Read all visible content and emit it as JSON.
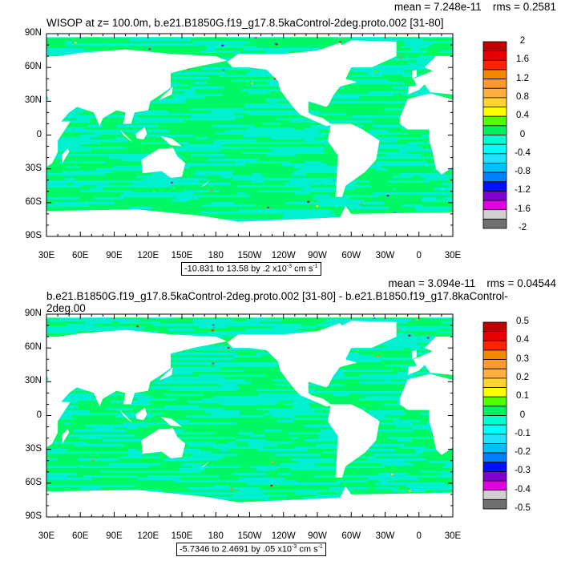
{
  "panels": [
    {
      "title": "WISOP at z= 100.0m, b.e21.B1850G.f19_g17.8.5kaControl-2deg.proto.002 [31-80]",
      "mean": "mean = 7.248e-11",
      "rms": "rms = 0.2581",
      "info": {
        "range": "-10.831 to 13.58 by .2 x10",
        "exp": "-3",
        "unit": " cm s",
        "unit_exp": "-1"
      },
      "colorbar_labels": [
        "2",
        "1.6",
        "1.2",
        "0.8",
        "0.4",
        "0",
        "-0.4",
        "-0.8",
        "-1.2",
        "-1.6",
        "-2"
      ]
    },
    {
      "title": "b.e21.B1850G.f19_g17.8.5kaControl-2deg.proto.002 [31-80] - b.e21.B1850.f19_g17.8kaControl-2deg.00",
      "mean": "mean = 3.094e-11",
      "rms": "rms = 0.04544",
      "info": {
        "range": "-5.7346 to 2.4691 by .05 x10",
        "exp": "-3",
        "unit": " cm s",
        "unit_exp": "-1"
      },
      "colorbar_labels": [
        "0.5",
        "0.4",
        "0.3",
        "0.2",
        "0.1",
        "0",
        "-0.1",
        "-0.2",
        "-0.3",
        "-0.4",
        "-0.5"
      ]
    }
  ],
  "lon_labels": [
    "30E",
    "60E",
    "90E",
    "120E",
    "150E",
    "180",
    "150W",
    "120W",
    "90W",
    "60W",
    "30W",
    "0",
    "30E"
  ],
  "lat_labels": [
    "90N",
    "60N",
    "30N",
    "0",
    "30S",
    "60S",
    "90S"
  ],
  "colors": {
    "colorbar": [
      "#c00000",
      "#e80000",
      "#ff2400",
      "#f08800",
      "#ff9a30",
      "#ffb040",
      "#ffd430",
      "#ffff00",
      "#50ff00",
      "#00f060",
      "#00ffd0",
      "#00ffff",
      "#20e4ff",
      "#00c0ff",
      "#0080ff",
      "#0010ff",
      "#8000d0",
      "#e000e0",
      "#d0d0d0",
      "#707070"
    ],
    "ocean_main": "#00f864",
    "ocean_band": "#00f0d0"
  }
}
